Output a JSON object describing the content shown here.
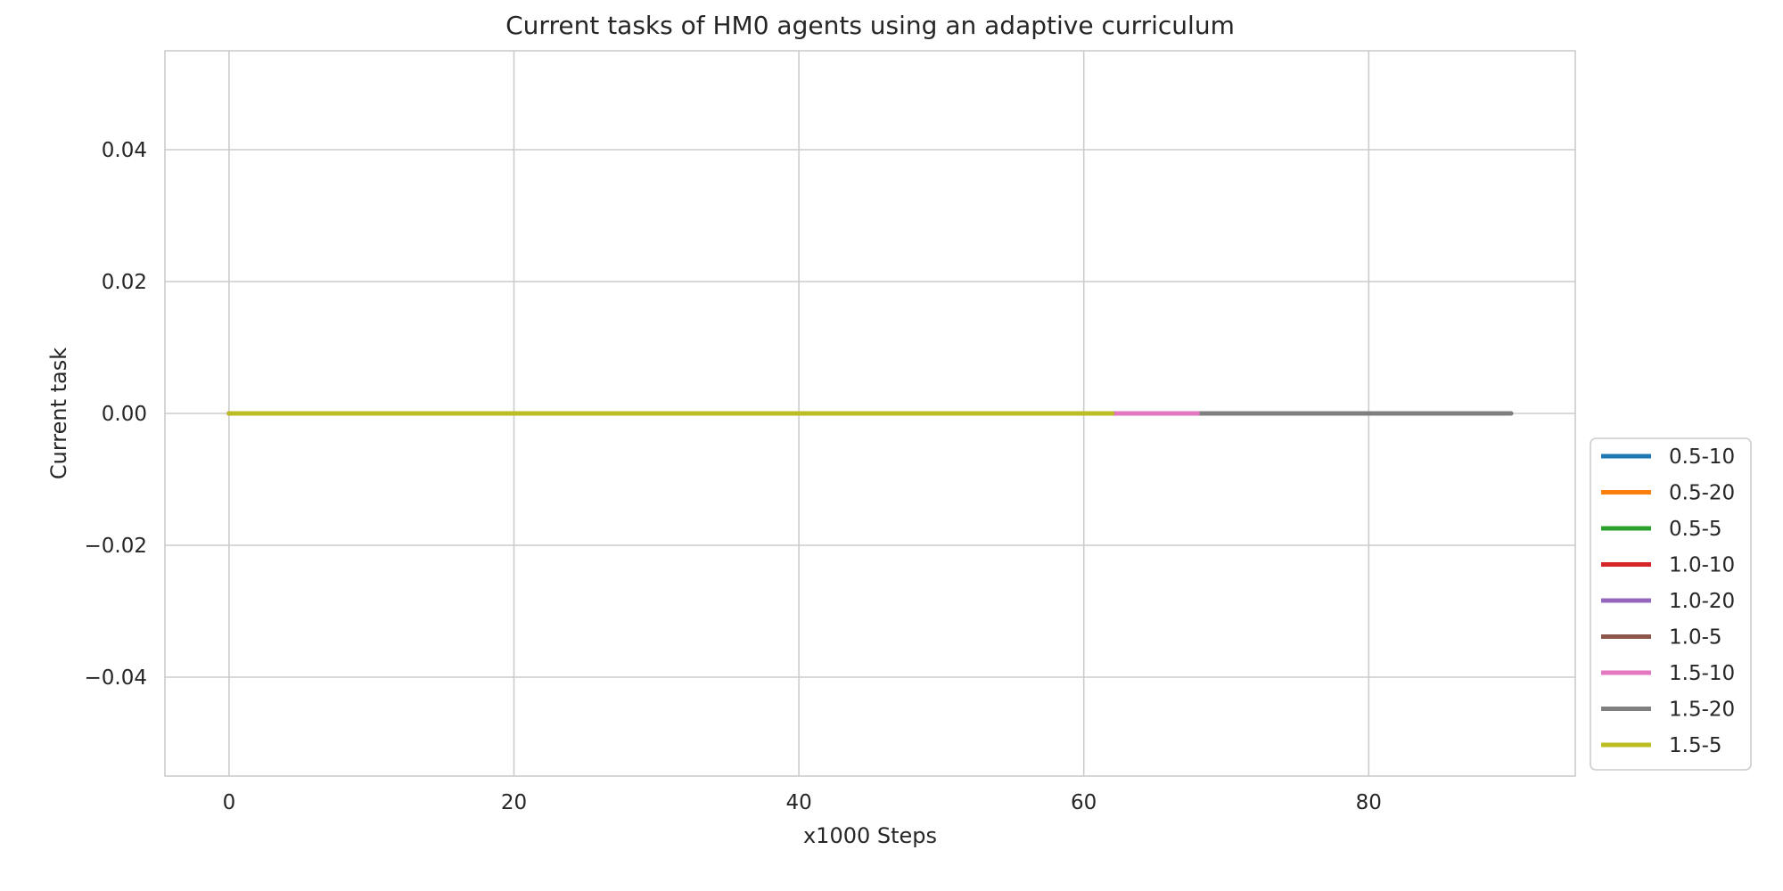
{
  "chart_data": {
    "type": "line",
    "title": "Current tasks of HM0 agents using an adaptive curriculum",
    "xlabel": "x1000 Steps",
    "ylabel": "Current task",
    "xlim": [
      -4.5,
      94.5
    ],
    "ylim": [
      -0.055,
      0.055
    ],
    "x_ticks": [
      0,
      20,
      40,
      60,
      80
    ],
    "x_tick_labels": [
      "0",
      "20",
      "40",
      "60",
      "80"
    ],
    "y_ticks": [
      -0.04,
      -0.02,
      0.0,
      0.02,
      0.04
    ],
    "y_tick_labels": [
      "−0.04",
      "−0.02",
      "0.00",
      "0.02",
      "0.04"
    ],
    "grid": true,
    "legend_position": "lower-right outside",
    "series": [
      {
        "name": "0.5-10",
        "color": "#1f77b4",
        "x": [
          0,
          62
        ],
        "values": [
          0,
          0
        ]
      },
      {
        "name": "0.5-20",
        "color": "#ff7f0e",
        "x": [
          0,
          62
        ],
        "values": [
          0,
          0
        ]
      },
      {
        "name": "0.5-5",
        "color": "#2ca02c",
        "x": [
          0,
          62
        ],
        "values": [
          0,
          0
        ]
      },
      {
        "name": "1.0-10",
        "color": "#d62728",
        "x": [
          0,
          62
        ],
        "values": [
          0,
          0
        ]
      },
      {
        "name": "1.0-20",
        "color": "#9467bd",
        "x": [
          0,
          62
        ],
        "values": [
          0,
          0
        ]
      },
      {
        "name": "1.0-5",
        "color": "#8c564b",
        "x": [
          0,
          62
        ],
        "values": [
          0,
          0
        ]
      },
      {
        "name": "1.5-10",
        "color": "#e377c2",
        "x": [
          0,
          68
        ],
        "values": [
          0,
          0
        ]
      },
      {
        "name": "1.5-20",
        "color": "#7f7f7f",
        "x": [
          0,
          90
        ],
        "values": [
          0,
          0
        ]
      },
      {
        "name": "1.5-5",
        "color": "#bcbd22",
        "x": [
          0,
          62
        ],
        "values": [
          0,
          0
        ]
      }
    ]
  }
}
